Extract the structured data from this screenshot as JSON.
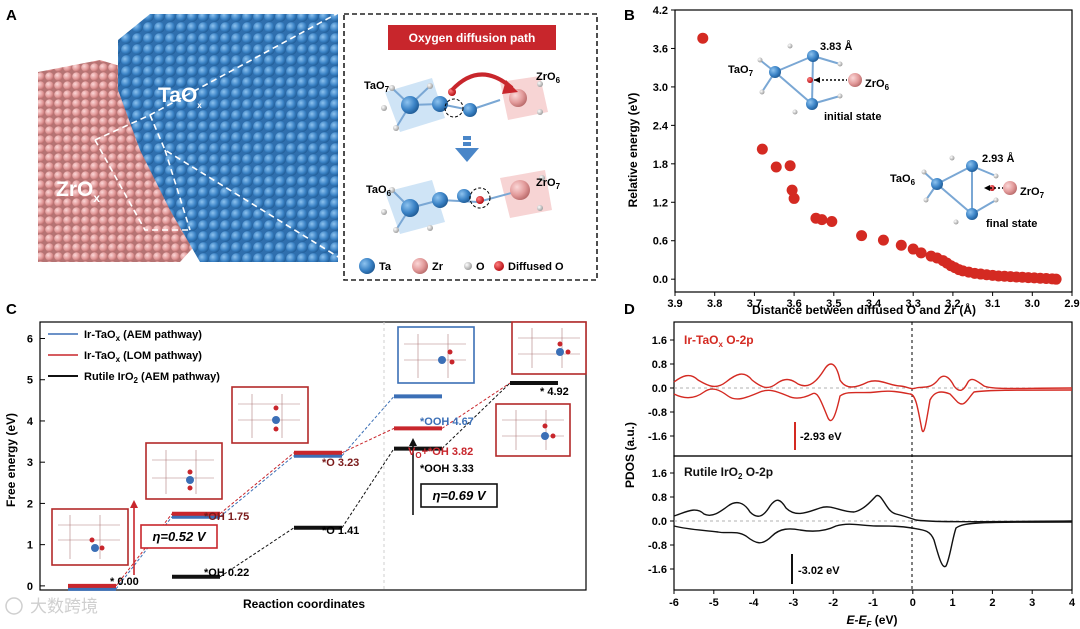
{
  "panels": {
    "A": {
      "label": "A",
      "taox": "TaO",
      "taox_sub": "x",
      "zrox": "ZrO",
      "zrox_sub": "x",
      "path_title": "Oxygen diffusion path",
      "tao7": "TaO",
      "tao7_sub": "7",
      "zro6": "ZrO",
      "zro6_sub": "6",
      "tao6": "TaO",
      "tao6_sub": "6",
      "zro7": "ZrO",
      "zro7_sub": "7",
      "legend": [
        {
          "label": "Ta",
          "color": "#3a84c9"
        },
        {
          "label": "Zr",
          "color": "#e59a9a"
        },
        {
          "label": "O",
          "color": "#d0d0d0"
        },
        {
          "label": "Diffused O",
          "color": "#d4181f"
        }
      ]
    },
    "B": {
      "label": "B"
    },
    "C": {
      "label": "C"
    },
    "D": {
      "label": "D"
    }
  },
  "chart_data": [
    {
      "panel": "B",
      "type": "scatter",
      "xlabel": "Distance between diffused O and Zr (Å)",
      "ylabel": "Relative energy (eV)",
      "xlim": [
        3.9,
        2.9
      ],
      "ylim": [
        -0.2,
        4.2
      ],
      "x_reversed": true,
      "xticks": [
        "3.9",
        "3.8",
        "3.7",
        "3.6",
        "3.5",
        "3.4",
        "3.3",
        "3.2",
        "3.1",
        "3.0",
        "2.9"
      ],
      "yticks": [
        "0.0",
        "0.6",
        "1.2",
        "1.8",
        "2.4",
        "3.0",
        "3.6",
        "4.2"
      ],
      "color": "#d42a22",
      "points": [
        [
          3.83,
          3.76
        ],
        [
          3.68,
          2.03
        ],
        [
          3.645,
          1.75
        ],
        [
          3.61,
          1.77
        ],
        [
          3.605,
          1.39
        ],
        [
          3.6,
          1.26
        ],
        [
          3.545,
          0.95
        ],
        [
          3.53,
          0.93
        ],
        [
          3.505,
          0.9
        ],
        [
          3.43,
          0.68
        ],
        [
          3.375,
          0.61
        ],
        [
          3.33,
          0.53
        ],
        [
          3.3,
          0.47
        ],
        [
          3.28,
          0.41
        ],
        [
          3.255,
          0.36
        ],
        [
          3.24,
          0.33
        ],
        [
          3.225,
          0.29
        ],
        [
          3.215,
          0.25
        ],
        [
          3.205,
          0.21
        ],
        [
          3.195,
          0.18
        ],
        [
          3.185,
          0.15
        ],
        [
          3.175,
          0.13
        ],
        [
          3.16,
          0.11
        ],
        [
          3.145,
          0.09
        ],
        [
          3.13,
          0.08
        ],
        [
          3.115,
          0.07
        ],
        [
          3.1,
          0.06
        ],
        [
          3.085,
          0.05
        ],
        [
          3.07,
          0.045
        ],
        [
          3.055,
          0.04
        ],
        [
          3.04,
          0.035
        ],
        [
          3.025,
          0.03
        ],
        [
          3.01,
          0.025
        ],
        [
          2.995,
          0.02
        ],
        [
          2.98,
          0.015
        ],
        [
          2.965,
          0.01
        ],
        [
          2.95,
          0.005
        ],
        [
          2.94,
          0.0
        ]
      ],
      "annotations": {
        "initial_distance": "3.83 Å",
        "initial_label": "initial state",
        "final_distance": "2.93 Å",
        "final_label": "final state",
        "i_tao": "TaO",
        "i_tao_sub": "7",
        "i_zro": "ZrO",
        "i_zro_sub": "6",
        "f_tao": "TaO",
        "f_tao_sub": "6",
        "f_zro": "ZrO",
        "f_zro_sub": "7"
      }
    },
    {
      "panel": "C",
      "type": "line",
      "xlabel": "Reaction coordinates",
      "ylabel": "Free energy (eV)",
      "ylim": [
        -0.1,
        6.4
      ],
      "yticks": [
        "0",
        "1",
        "2",
        "3",
        "4",
        "5",
        "6"
      ],
      "series": [
        {
          "name": "Ir-TaO",
          "name_sub": "x",
          "name_suffix": " (AEM pathway)",
          "color": "#3b6fb6",
          "levels": [
            0.0,
            1.75,
            3.23,
            4.67
          ],
          "steps": [
            0,
            1,
            2,
            3
          ]
        },
        {
          "name": "Ir-TaO",
          "name_sub": "x",
          "name_suffix": " (LOM pathway)",
          "color": "#c8262c",
          "levels": [
            0.0,
            1.75,
            3.23,
            3.82,
            4.92
          ],
          "steps": [
            0,
            1,
            2,
            3,
            4
          ]
        },
        {
          "name": "Rutile IrO",
          "name_sub": "2",
          "name_suffix": " (AEM pathway)",
          "color": "#111111",
          "levels": [
            0.22,
            1.41,
            3.33,
            4.92
          ],
          "steps": [
            1,
            2,
            3,
            4
          ]
        }
      ],
      "labels": {
        "star": "* 0.00",
        "oh_red": "*OH 1.75",
        "o_red": "*O 3.23",
        "ooh_blue": "*OOH 4.67",
        "vo_red": "V",
        "vo_sub": "O",
        "vo_rest": "+*OH 3.82",
        "star_end": "* 4.92",
        "oh_black": "*OH 0.22",
        "o_black": "*O 1.41",
        "ooh_black": "*OOH 3.33"
      },
      "eta1": "η=0.52 V",
      "eta2": "η=0.69 V"
    },
    {
      "panel": "D",
      "type": "line",
      "xlabel": "E-E",
      "xlabel_sub": "F",
      "xlabel_unit": " (eV)",
      "ylabel": "PDOS (a.u.)",
      "xlim": [
        -6,
        4
      ],
      "xticks": [
        "-6",
        "-5",
        "-4",
        "-3",
        "-2",
        "-1",
        "0",
        "1",
        "2",
        "3",
        "4"
      ],
      "yticks": [
        "1.6",
        "0.8",
        "0.0",
        "-0.8",
        "-1.6"
      ],
      "series": [
        {
          "name": "Ir-TaO",
          "name_sub": "x",
          "name_suffix": " O-2p",
          "color": "#d42a22",
          "band_center": "-2.93 eV"
        },
        {
          "name": "Rutile IrO",
          "name_sub": "2",
          "name_suffix": " O-2p",
          "color": "#111111",
          "band_center": "-3.02 eV"
        }
      ]
    }
  ],
  "watermark": "大数跨境"
}
